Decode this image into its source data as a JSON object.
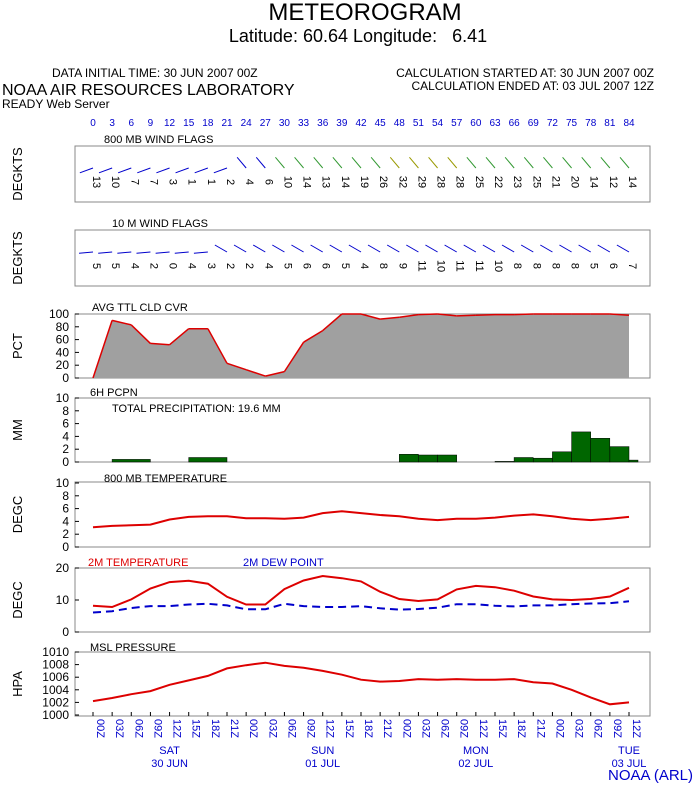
{
  "header": {
    "title": "METEOROGRAM",
    "location": "Latitude: 60.64 Longitude:   6.41",
    "data_initial_time": "DATA INITIAL TIME: 30 JUN 2007 00Z",
    "calc_started": "CALCULATION STARTED AT: 30 JUN 2007 00Z",
    "calc_ended": "CALCULATION ENDED AT: 03 JUL 2007 12Z",
    "org": "NOAA AIR RESOURCES LABORATORY",
    "server": "READY Web Server",
    "footer": "NOAA (ARL)"
  },
  "colors": {
    "red": "#dd0000",
    "blue": "#0000cc",
    "green": "#007700",
    "gray": "#a0a0a0",
    "darkgreen": "#006600"
  },
  "forecast_hours": [
    "0",
    "3",
    "6",
    "9",
    "12",
    "15",
    "18",
    "21",
    "24",
    "27",
    "30",
    "33",
    "36",
    "39",
    "42",
    "45",
    "48",
    "51",
    "54",
    "57",
    "60",
    "63",
    "66",
    "69",
    "72",
    "75",
    "78",
    "81",
    "84"
  ],
  "chart_data": [
    {
      "type": "table",
      "title": "800 MB  WIND FLAGS",
      "ylabel": "DEGKTS",
      "x": [
        0,
        3,
        6,
        9,
        12,
        15,
        18,
        21,
        24,
        27,
        30,
        33,
        36,
        39,
        42,
        45,
        48,
        51,
        54,
        57,
        60,
        63,
        66,
        69,
        72,
        75,
        78,
        81,
        84
      ],
      "speeds": [
        "13",
        "10",
        "7",
        "7",
        "3",
        "1",
        "1",
        "2",
        "4",
        "6",
        "10",
        "14",
        "13",
        "14",
        "19",
        "26",
        "32",
        "29",
        "28",
        "28",
        "25",
        "22",
        "23",
        "25",
        "21",
        "20",
        "14",
        "12",
        "14"
      ]
    },
    {
      "type": "table",
      "title": "10 M  WIND FLAGS",
      "ylabel": "DEGKTS",
      "x": [
        0,
        3,
        6,
        9,
        12,
        15,
        18,
        21,
        24,
        27,
        30,
        33,
        36,
        39,
        42,
        45,
        48,
        51,
        54,
        57,
        60,
        63,
        66,
        69,
        72,
        75,
        78,
        81,
        84
      ],
      "speeds": [
        "5",
        "5",
        "4",
        "2",
        "0",
        "4",
        "3",
        "2",
        "2",
        "4",
        "5",
        "6",
        "6",
        "5",
        "4",
        "8",
        "9",
        "11",
        "10",
        "11",
        "11",
        "10",
        "8",
        "8",
        "8",
        "8",
        "5",
        "6",
        "7"
      ]
    },
    {
      "type": "area",
      "title": "AVG TTL CLD CVR",
      "ylabel": "PCT",
      "yticks": [
        "0",
        "20",
        "40",
        "60",
        "80",
        "100"
      ],
      "ylim": [
        0,
        100
      ],
      "x": [
        0,
        3,
        6,
        9,
        12,
        15,
        18,
        21,
        24,
        27,
        30,
        33,
        36,
        39,
        42,
        45,
        48,
        51,
        54,
        57,
        60,
        63,
        66,
        69,
        72,
        75,
        78,
        81,
        84
      ],
      "values": [
        0,
        90,
        83,
        54,
        52,
        77,
        77,
        23,
        13,
        3,
        10,
        56,
        74,
        100,
        100,
        92,
        95,
        99,
        100,
        97,
        98,
        99,
        99,
        100,
        100,
        100,
        100,
        100,
        98
      ]
    },
    {
      "type": "bar",
      "title": "6H PCPN",
      "annotation": "TOTAL PRECIPITATION:  19.6 MM",
      "ylabel": "MM",
      "yticks": [
        "0",
        "2",
        "4",
        "6",
        "8",
        "10"
      ],
      "ylim": [
        0,
        10
      ],
      "bars": [
        {
          "x0": 3,
          "x1": 9,
          "value": 0.4
        },
        {
          "x0": 15,
          "x1": 21,
          "value": 0.7
        },
        {
          "x0": 48,
          "x1": 51,
          "value": 1.2
        },
        {
          "x0": 51,
          "x1": 54,
          "value": 1.1
        },
        {
          "x0": 54,
          "x1": 57,
          "value": 1.1
        },
        {
          "x0": 63,
          "x1": 66,
          "value": 0.1
        },
        {
          "x0": 66,
          "x1": 69,
          "value": 0.7
        },
        {
          "x0": 69,
          "x1": 72,
          "value": 0.6
        },
        {
          "x0": 72,
          "x1": 75,
          "value": 1.6
        },
        {
          "x0": 75,
          "x1": 78,
          "value": 4.7
        },
        {
          "x0": 78,
          "x1": 81,
          "value": 3.7
        },
        {
          "x0": 81,
          "x1": 84,
          "value": 2.4
        },
        {
          "x0": 84,
          "x1": 86,
          "value": 0.3
        }
      ]
    },
    {
      "type": "line",
      "title": "800 MB  TEMPERATURE",
      "ylabel": "DEGC",
      "yticks": [
        "0",
        "2",
        "4",
        "6",
        "8",
        "10"
      ],
      "ylim": [
        0,
        10
      ],
      "x": [
        0,
        3,
        6,
        9,
        12,
        15,
        18,
        21,
        24,
        27,
        30,
        33,
        36,
        39,
        42,
        45,
        48,
        51,
        54,
        57,
        60,
        63,
        66,
        69,
        72,
        75,
        78,
        81,
        84
      ],
      "series": [
        {
          "values": [
            3.1,
            3.3,
            3.4,
            3.5,
            4.3,
            4.7,
            4.8,
            4.8,
            4.5,
            4.5,
            4.4,
            4.6,
            5.3,
            5.6,
            5.3,
            5.0,
            4.8,
            4.4,
            4.2,
            4.4,
            4.4,
            4.6,
            4.9,
            5.1,
            4.8,
            4.4,
            4.2,
            4.4,
            4.7
          ]
        }
      ]
    },
    {
      "type": "line",
      "ylabel": "DEGC",
      "yticks": [
        "0",
        "10",
        "20"
      ],
      "ylim": [
        0,
        20
      ],
      "x": [
        0,
        3,
        6,
        9,
        12,
        15,
        18,
        21,
        24,
        27,
        30,
        33,
        36,
        39,
        42,
        45,
        48,
        51,
        54,
        57,
        60,
        63,
        66,
        69,
        72,
        75,
        78,
        81,
        84
      ],
      "series": [
        {
          "name": "2M TEMPERATURE",
          "values": [
            8.2,
            7.8,
            10.2,
            13.6,
            15.6,
            16.0,
            15.1,
            11.0,
            8.6,
            8.6,
            13.4,
            16.1,
            17.5,
            16.8,
            15.8,
            12.6,
            10.3,
            9.7,
            10.2,
            13.3,
            14.4,
            14.0,
            12.9,
            11.1,
            10.2,
            10.0,
            10.3,
            11.1,
            13.8
          ]
        },
        {
          "name": "2M   DEW POINT",
          "values": [
            6.1,
            6.5,
            7.5,
            8.1,
            8.1,
            8.6,
            8.8,
            8.3,
            7.1,
            7.1,
            8.8,
            8.1,
            7.8,
            7.8,
            8.1,
            7.4,
            7.0,
            7.2,
            7.6,
            8.7,
            8.7,
            8.2,
            8.0,
            8.3,
            8.3,
            8.7,
            8.9,
            9.0,
            9.6
          ]
        }
      ]
    },
    {
      "type": "line",
      "title": "MSL PRESSURE",
      "ylabel": "HPA",
      "yticks": [
        "1000",
        "1002",
        "1004",
        "1006",
        "1008",
        "1010"
      ],
      "ylim": [
        1000,
        1010
      ],
      "x": [
        0,
        3,
        6,
        9,
        12,
        15,
        18,
        21,
        24,
        27,
        30,
        33,
        36,
        39,
        42,
        45,
        48,
        51,
        54,
        57,
        60,
        63,
        66,
        69,
        72,
        75,
        78,
        81,
        84
      ],
      "series": [
        {
          "values": [
            1002.2,
            1002.7,
            1003.3,
            1003.8,
            1004.8,
            1005.5,
            1006.2,
            1007.4,
            1007.9,
            1008.3,
            1007.8,
            1007.5,
            1007.0,
            1006.4,
            1005.6,
            1005.3,
            1005.4,
            1005.7,
            1005.6,
            1005.7,
            1005.6,
            1005.6,
            1005.7,
            1005.2,
            1005.0,
            1004.0,
            1002.8,
            1001.7,
            1002.0
          ]
        }
      ]
    }
  ],
  "x_axis": {
    "tick_labels": [
      "00Z",
      "03Z",
      "06Z",
      "09Z",
      "12Z",
      "15Z",
      "18Z",
      "21Z",
      "00Z",
      "03Z",
      "06Z",
      "09Z",
      "12Z",
      "15Z",
      "18Z",
      "21Z",
      "00Z",
      "03Z",
      "06Z",
      "09Z",
      "12Z",
      "15Z",
      "18Z",
      "21Z",
      "00Z",
      "03Z",
      "06Z",
      "09Z",
      "12Z"
    ],
    "day_labels": [
      {
        "day": "SAT",
        "date": "30 JUN",
        "at": 12
      },
      {
        "day": "SUN",
        "date": "01 JUL",
        "at": 36
      },
      {
        "day": "MON",
        "date": "02 JUL",
        "at": 60
      },
      {
        "day": "TUE",
        "date": "03 JUL",
        "at": 84
      }
    ]
  }
}
